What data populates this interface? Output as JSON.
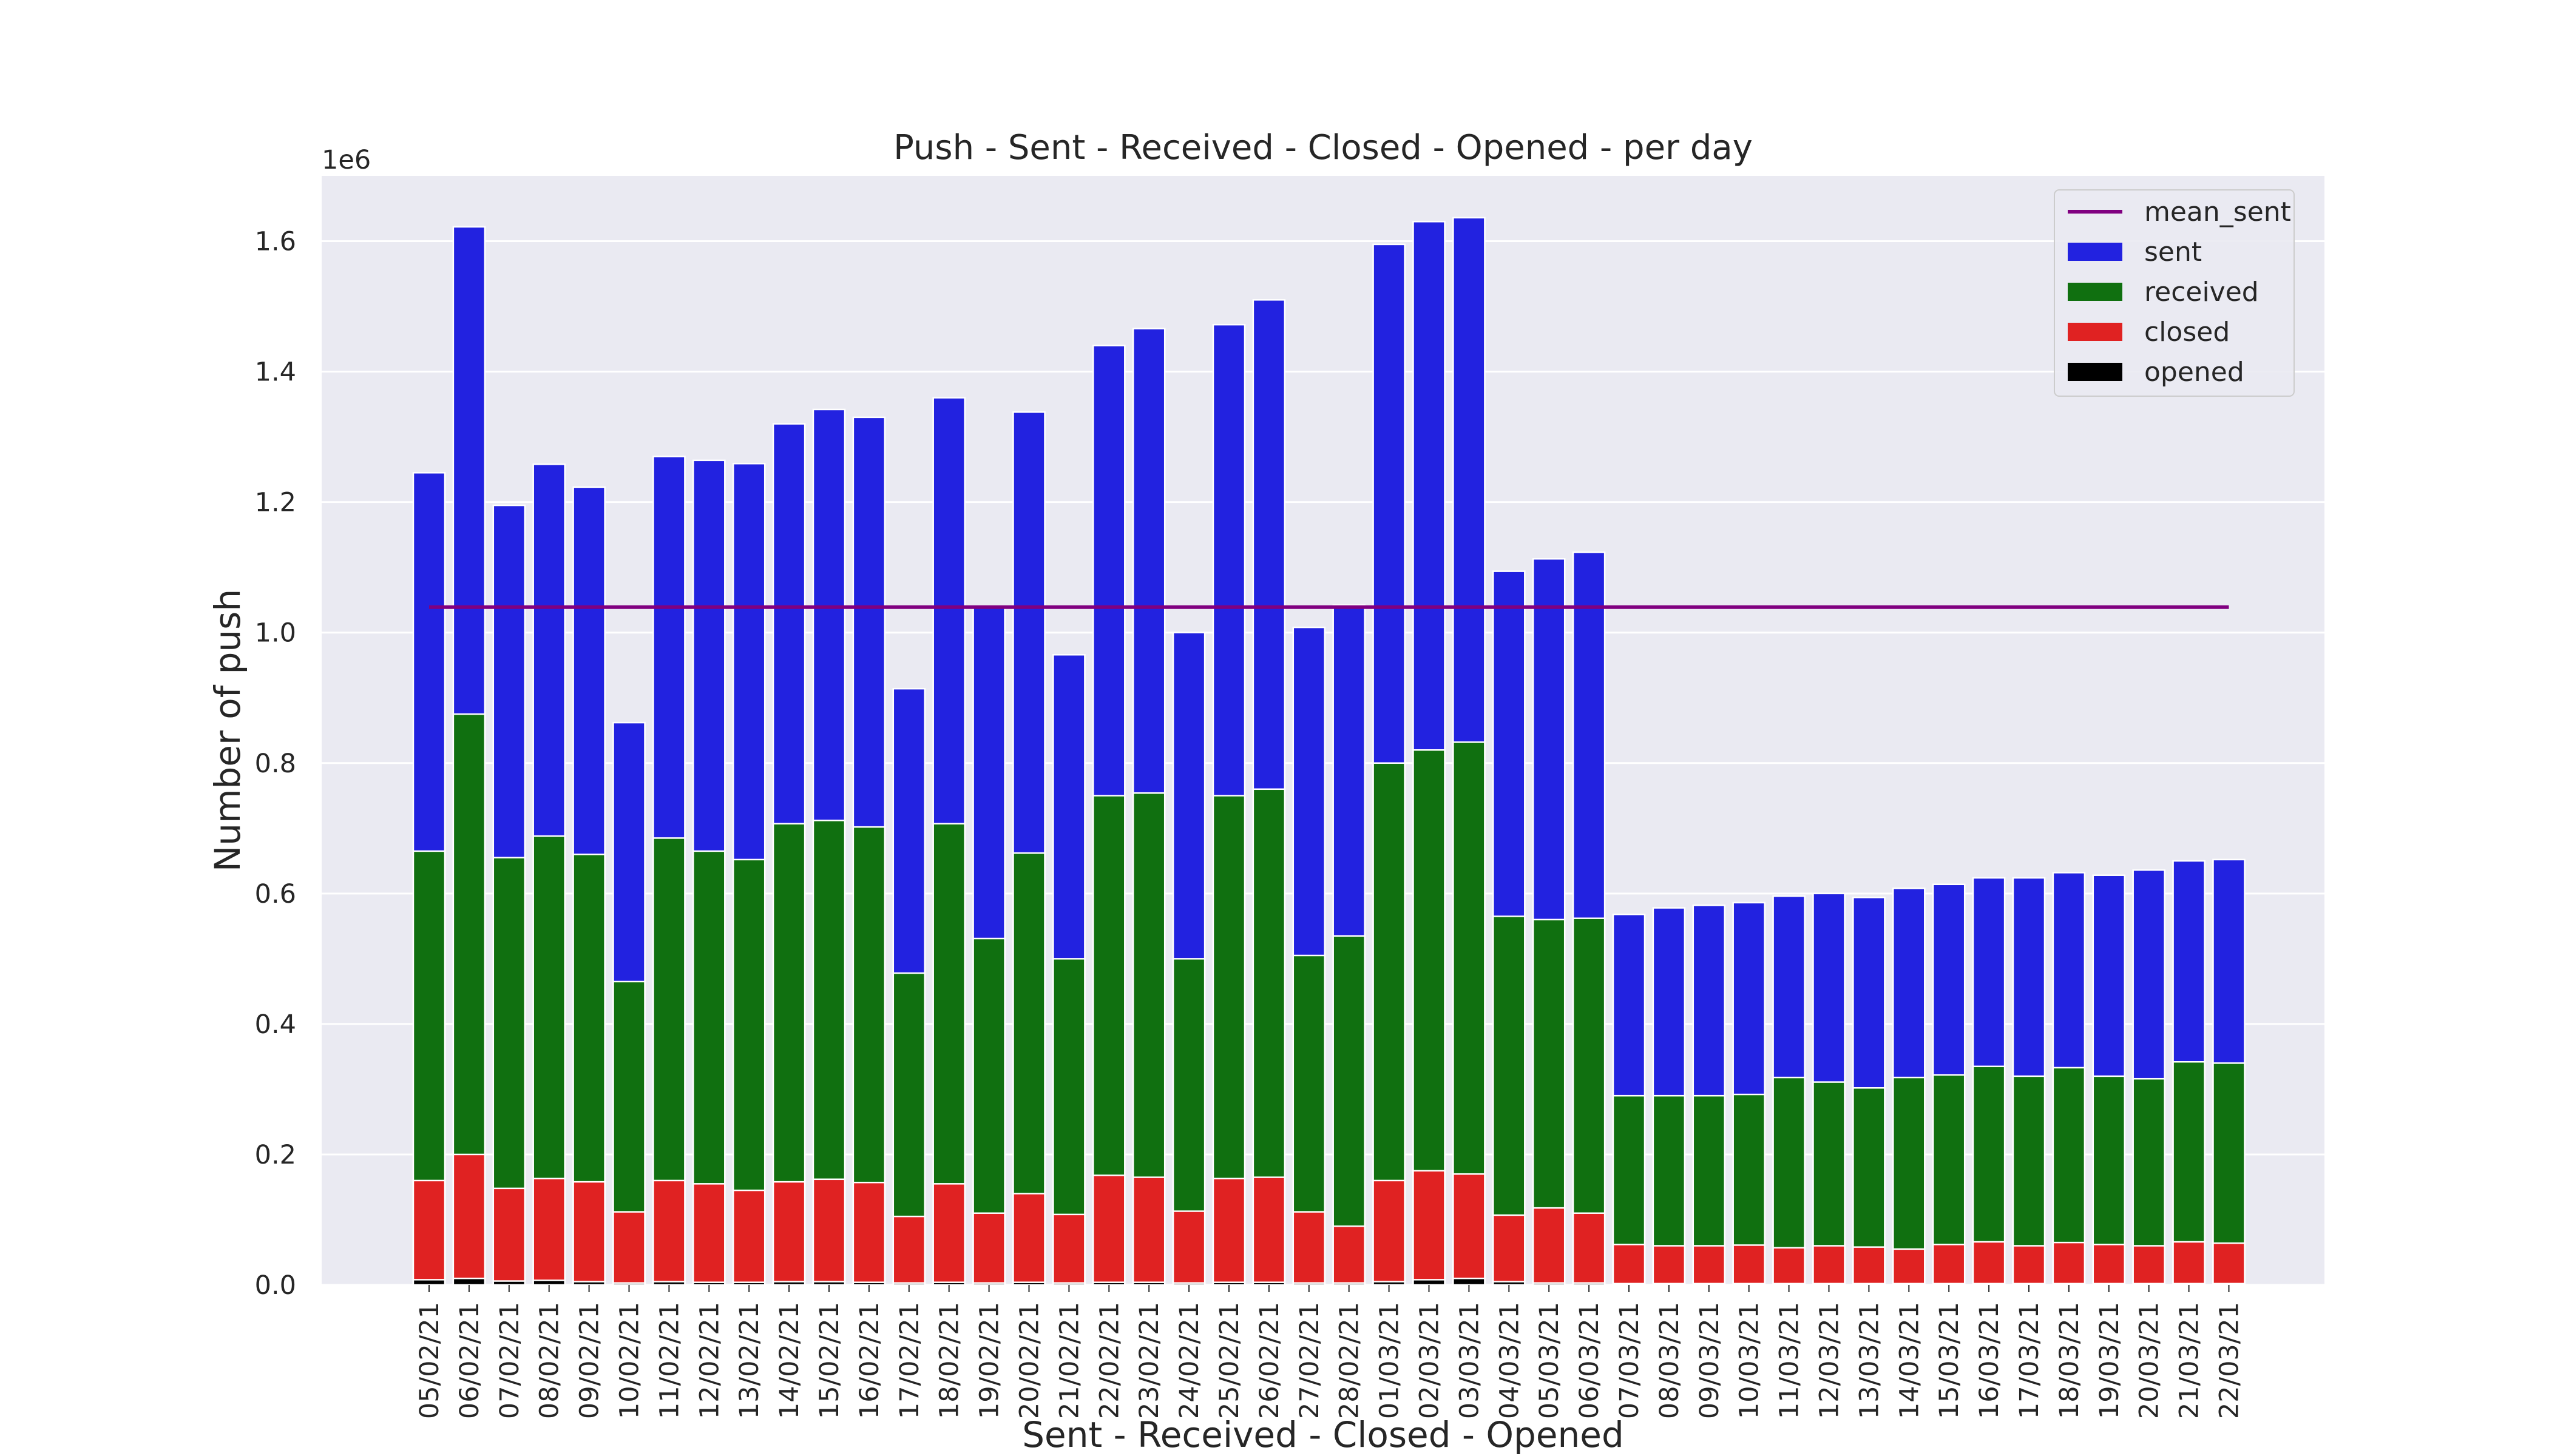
{
  "chart_data": {
    "type": "bar",
    "stacking": "overlay",
    "title": "Push - Sent - Received - Closed - Opened - per day",
    "xlabel": "Sent - Received - Closed - Opened",
    "ylabel": "Number of push",
    "y_offset_text": "1e6",
    "ylim": [
      0,
      1.7
    ],
    "y_ticks": [
      0.0,
      0.2,
      0.4,
      0.6,
      0.8,
      1.0,
      1.2,
      1.4,
      1.6
    ],
    "y_tick_labels": [
      "0.0",
      "0.2",
      "0.4",
      "0.6",
      "0.8",
      "1.0",
      "1.2",
      "1.4",
      "1.6"
    ],
    "grid": true,
    "legend_position": "top-right",
    "categories": [
      "05/02/21",
      "06/02/21",
      "07/02/21",
      "08/02/21",
      "09/02/21",
      "10/02/21",
      "11/02/21",
      "12/02/21",
      "13/02/21",
      "14/02/21",
      "15/02/21",
      "16/02/21",
      "17/02/21",
      "18/02/21",
      "19/02/21",
      "20/02/21",
      "21/02/21",
      "22/02/21",
      "23/02/21",
      "24/02/21",
      "25/02/21",
      "26/02/21",
      "27/02/21",
      "28/02/21",
      "01/03/21",
      "02/03/21",
      "03/03/21",
      "04/03/21",
      "05/03/21",
      "06/03/21",
      "07/03/21",
      "08/03/21",
      "09/03/21",
      "10/03/21",
      "11/03/21",
      "12/03/21",
      "13/03/21",
      "14/03/21",
      "15/03/21",
      "16/03/21",
      "17/03/21",
      "18/03/21",
      "19/03/21",
      "20/03/21",
      "21/03/21",
      "22/03/21"
    ],
    "series": [
      {
        "name": "sent",
        "color": "#2222e0",
        "values": [
          1.245,
          1.622,
          1.195,
          1.258,
          1.223,
          0.862,
          1.27,
          1.264,
          1.259,
          1.32,
          1.342,
          1.33,
          0.914,
          1.36,
          1.04,
          1.338,
          0.966,
          1.44,
          1.466,
          1.0,
          1.472,
          1.51,
          1.008,
          1.042,
          1.595,
          1.63,
          1.636,
          1.094,
          1.113,
          1.123,
          0.568,
          0.578,
          0.582,
          0.586,
          0.596,
          0.6,
          0.594,
          0.608,
          0.614,
          0.624,
          0.624,
          0.632,
          0.628,
          0.636,
          0.65,
          0.652
        ]
      },
      {
        "name": "received",
        "color": "#107010",
        "values": [
          0.665,
          0.875,
          0.655,
          0.688,
          0.66,
          0.465,
          0.685,
          0.665,
          0.652,
          0.707,
          0.712,
          0.702,
          0.478,
          0.707,
          0.531,
          0.662,
          0.5,
          0.75,
          0.754,
          0.5,
          0.75,
          0.76,
          0.505,
          0.535,
          0.8,
          0.82,
          0.832,
          0.565,
          0.56,
          0.562,
          0.29,
          0.29,
          0.29,
          0.292,
          0.318,
          0.311,
          0.302,
          0.318,
          0.322,
          0.335,
          0.32,
          0.333,
          0.32,
          0.316,
          0.342,
          0.34
        ]
      },
      {
        "name": "closed",
        "color": "#e02222",
        "values": [
          0.16,
          0.2,
          0.148,
          0.163,
          0.158,
          0.112,
          0.16,
          0.155,
          0.145,
          0.158,
          0.162,
          0.157,
          0.105,
          0.155,
          0.11,
          0.14,
          0.108,
          0.168,
          0.165,
          0.113,
          0.163,
          0.165,
          0.112,
          0.09,
          0.16,
          0.175,
          0.17,
          0.107,
          0.118,
          0.11,
          0.062,
          0.06,
          0.06,
          0.061,
          0.057,
          0.06,
          0.058,
          0.055,
          0.062,
          0.066,
          0.06,
          0.065,
          0.062,
          0.06,
          0.066,
          0.064
        ]
      },
      {
        "name": "opened",
        "color": "#000000",
        "values": [
          0.008,
          0.01,
          0.006,
          0.007,
          0.005,
          0.003,
          0.005,
          0.004,
          0.004,
          0.005,
          0.005,
          0.004,
          0.003,
          0.004,
          0.003,
          0.004,
          0.003,
          0.004,
          0.004,
          0.003,
          0.004,
          0.004,
          0.003,
          0.003,
          0.005,
          0.008,
          0.01,
          0.005,
          0.003,
          0.003,
          0.002,
          0.002,
          0.002,
          0.002,
          0.002,
          0.002,
          0.002,
          0.002,
          0.002,
          0.002,
          0.002,
          0.002,
          0.002,
          0.002,
          0.002,
          0.002
        ]
      }
    ],
    "lines": [
      {
        "name": "mean_sent",
        "color": "#800080",
        "value": 1.039
      }
    ],
    "legend": [
      {
        "label": "mean_sent",
        "kind": "line",
        "color": "#800080"
      },
      {
        "label": "sent",
        "kind": "patch",
        "color": "#2222e0"
      },
      {
        "label": "received",
        "kind": "patch",
        "color": "#107010"
      },
      {
        "label": "closed",
        "kind": "patch",
        "color": "#e02222"
      },
      {
        "label": "opened",
        "kind": "patch",
        "color": "#000000"
      }
    ],
    "colors": {
      "plot_background": "#eaeaf2",
      "grid": "#ffffff",
      "bar_edge": "#ffffff"
    }
  }
}
